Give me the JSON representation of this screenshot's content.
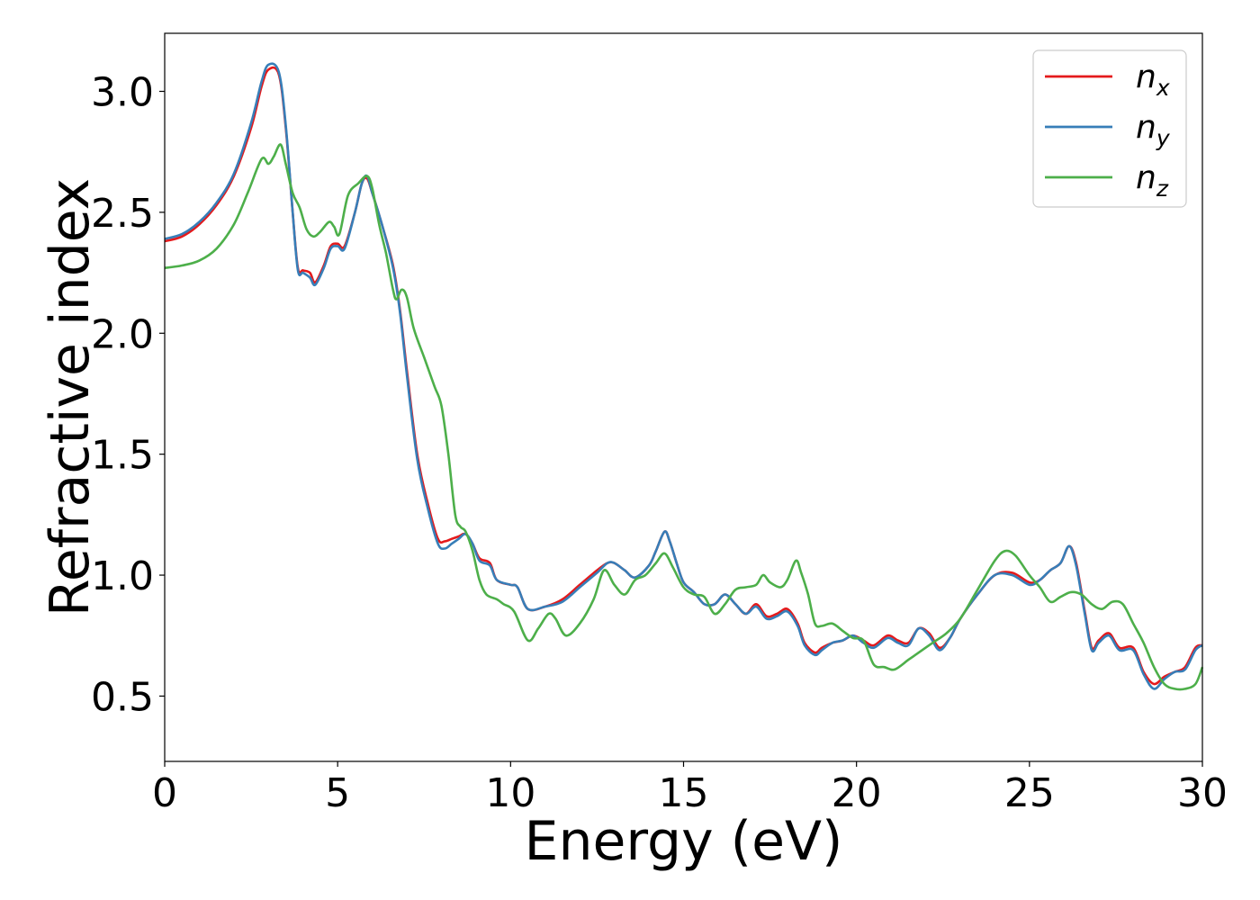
{
  "chart_data": {
    "type": "line",
    "title": "",
    "xlabel": "Energy (eV)",
    "ylabel": "Refractive index",
    "xlim": [
      0,
      30
    ],
    "ylim": [
      0.23,
      3.24
    ],
    "xticks": [
      0,
      5,
      10,
      15,
      20,
      25,
      30
    ],
    "xtick_labels": [
      "0",
      "5",
      "10",
      "15",
      "20",
      "25",
      "30"
    ],
    "yticks": [
      0.5,
      1.0,
      1.5,
      2.0,
      2.5,
      3.0
    ],
    "ytick_labels": [
      "0.5",
      "1.0",
      "1.5",
      "2.0",
      "2.5",
      "3.0"
    ],
    "grid": false,
    "legend_position": "top-right",
    "series": [
      {
        "name": "n_x",
        "label_base": "n",
        "label_sub": "x",
        "color": "#e41a1c",
        "x": [
          0,
          0.5,
          1,
          1.5,
          2,
          2.5,
          2.8,
          3.0,
          3.3,
          3.5,
          3.7,
          3.85,
          4.0,
          4.2,
          4.35,
          4.6,
          4.8,
          5.0,
          5.2,
          5.5,
          5.7,
          5.85,
          6.0,
          6.3,
          6.6,
          6.8,
          7.0,
          7.3,
          7.6,
          7.9,
          8.1,
          8.3,
          8.5,
          8.7,
          8.9,
          9.1,
          9.4,
          9.6,
          10.0,
          10.2,
          10.5,
          11.0,
          11.5,
          12.0,
          12.5,
          12.8,
          13.0,
          13.3,
          13.6,
          14.0,
          14.2,
          14.45,
          14.6,
          14.8,
          15.0,
          15.3,
          15.6,
          15.9,
          16.2,
          16.5,
          16.8,
          17.1,
          17.4,
          17.7,
          18.0,
          18.3,
          18.5,
          18.8,
          19.0,
          19.3,
          19.6,
          19.9,
          20.2,
          20.5,
          20.9,
          21.2,
          21.5,
          21.8,
          22.1,
          22.4,
          22.7,
          23.0,
          23.5,
          24.0,
          24.5,
          25.0,
          25.3,
          25.6,
          25.9,
          26.15,
          26.35,
          26.6,
          26.8,
          27.0,
          27.3,
          27.6,
          28.0,
          28.3,
          28.6,
          28.9,
          29.2,
          29.5,
          29.8,
          30.0
        ],
        "y": [
          2.38,
          2.4,
          2.45,
          2.53,
          2.65,
          2.85,
          3.02,
          3.09,
          3.07,
          2.85,
          2.5,
          2.27,
          2.26,
          2.25,
          2.21,
          2.28,
          2.36,
          2.37,
          2.36,
          2.5,
          2.62,
          2.64,
          2.58,
          2.44,
          2.28,
          2.1,
          1.85,
          1.5,
          1.3,
          1.15,
          1.14,
          1.15,
          1.16,
          1.17,
          1.13,
          1.07,
          1.05,
          0.98,
          0.96,
          0.95,
          0.86,
          0.87,
          0.9,
          0.96,
          1.02,
          1.05,
          1.05,
          1.02,
          0.99,
          1.04,
          1.1,
          1.18,
          1.14,
          1.05,
          0.97,
          0.93,
          0.88,
          0.88,
          0.92,
          0.88,
          0.84,
          0.88,
          0.83,
          0.84,
          0.86,
          0.8,
          0.72,
          0.68,
          0.7,
          0.72,
          0.73,
          0.75,
          0.73,
          0.71,
          0.75,
          0.73,
          0.72,
          0.78,
          0.76,
          0.7,
          0.74,
          0.82,
          0.92,
          1.0,
          1.01,
          0.97,
          0.98,
          1.02,
          1.05,
          1.12,
          1.05,
          0.85,
          0.7,
          0.73,
          0.76,
          0.7,
          0.7,
          0.6,
          0.55,
          0.58,
          0.6,
          0.62,
          0.7,
          0.71
        ]
      },
      {
        "name": "n_y",
        "label_base": "n",
        "label_sub": "y",
        "color": "#377eb8",
        "x": [
          0,
          0.5,
          1,
          1.5,
          2,
          2.5,
          2.8,
          3.0,
          3.3,
          3.5,
          3.7,
          3.85,
          4.0,
          4.2,
          4.35,
          4.6,
          4.8,
          5.0,
          5.2,
          5.5,
          5.7,
          5.85,
          6.0,
          6.3,
          6.6,
          6.8,
          7.0,
          7.3,
          7.6,
          7.9,
          8.1,
          8.3,
          8.5,
          8.7,
          8.9,
          9.1,
          9.4,
          9.6,
          10.0,
          10.2,
          10.5,
          11.0,
          11.5,
          12.0,
          12.5,
          12.8,
          13.0,
          13.3,
          13.6,
          14.0,
          14.2,
          14.45,
          14.6,
          14.8,
          15.0,
          15.3,
          15.6,
          15.9,
          16.2,
          16.5,
          16.8,
          17.1,
          17.4,
          17.7,
          18.0,
          18.3,
          18.5,
          18.8,
          19.0,
          19.3,
          19.6,
          19.9,
          20.2,
          20.5,
          20.9,
          21.2,
          21.5,
          21.8,
          22.1,
          22.4,
          22.7,
          23.0,
          23.5,
          24.0,
          24.5,
          25.0,
          25.3,
          25.6,
          25.9,
          26.15,
          26.35,
          26.6,
          26.8,
          27.0,
          27.3,
          27.6,
          28.0,
          28.3,
          28.6,
          28.9,
          29.2,
          29.5,
          29.8,
          30.0
        ],
        "y": [
          2.39,
          2.41,
          2.46,
          2.54,
          2.66,
          2.87,
          3.04,
          3.11,
          3.08,
          2.86,
          2.5,
          2.26,
          2.25,
          2.23,
          2.2,
          2.27,
          2.35,
          2.36,
          2.35,
          2.5,
          2.62,
          2.65,
          2.58,
          2.44,
          2.27,
          2.09,
          1.83,
          1.48,
          1.28,
          1.13,
          1.11,
          1.13,
          1.15,
          1.17,
          1.13,
          1.06,
          1.04,
          0.98,
          0.96,
          0.95,
          0.86,
          0.87,
          0.89,
          0.95,
          1.01,
          1.05,
          1.05,
          1.02,
          0.99,
          1.04,
          1.1,
          1.18,
          1.14,
          1.05,
          0.97,
          0.93,
          0.88,
          0.88,
          0.92,
          0.88,
          0.84,
          0.87,
          0.82,
          0.83,
          0.85,
          0.79,
          0.71,
          0.67,
          0.69,
          0.72,
          0.73,
          0.75,
          0.72,
          0.7,
          0.74,
          0.72,
          0.71,
          0.78,
          0.75,
          0.69,
          0.74,
          0.82,
          0.92,
          1.0,
          1.0,
          0.96,
          0.98,
          1.02,
          1.05,
          1.12,
          1.04,
          0.84,
          0.69,
          0.72,
          0.75,
          0.69,
          0.69,
          0.59,
          0.53,
          0.57,
          0.6,
          0.61,
          0.69,
          0.71
        ]
      },
      {
        "name": "n_z",
        "label_base": "n",
        "label_sub": "z",
        "color": "#4daf4a",
        "x": [
          0,
          0.5,
          1,
          1.5,
          2,
          2.4,
          2.8,
          3.0,
          3.15,
          3.35,
          3.5,
          3.7,
          3.9,
          4.1,
          4.3,
          4.5,
          4.75,
          4.9,
          5.05,
          5.3,
          5.6,
          5.85,
          6.0,
          6.2,
          6.4,
          6.6,
          6.7,
          6.85,
          7.0,
          7.2,
          7.5,
          7.8,
          8.0,
          8.2,
          8.4,
          8.55,
          8.7,
          8.9,
          9.1,
          9.3,
          9.6,
          9.8,
          10.1,
          10.5,
          10.8,
          11.1,
          11.3,
          11.6,
          12.0,
          12.4,
          12.7,
          13.0,
          13.3,
          13.6,
          13.9,
          14.2,
          14.45,
          14.7,
          15.0,
          15.3,
          15.6,
          15.9,
          16.2,
          16.5,
          16.8,
          17.1,
          17.3,
          17.5,
          17.8,
          18.0,
          18.25,
          18.4,
          18.6,
          18.8,
          19.0,
          19.3,
          19.6,
          19.9,
          20.2,
          20.5,
          20.8,
          21.1,
          21.5,
          21.8,
          22.2,
          22.6,
          23.0,
          23.5,
          24.0,
          24.3,
          24.6,
          25.0,
          25.3,
          25.6,
          25.9,
          26.2,
          26.5,
          26.8,
          27.1,
          27.4,
          27.7,
          28.0,
          28.3,
          28.6,
          28.9,
          29.2,
          29.5,
          29.8,
          30.0
        ],
        "y": [
          2.27,
          2.28,
          2.3,
          2.35,
          2.45,
          2.58,
          2.72,
          2.7,
          2.73,
          2.78,
          2.7,
          2.58,
          2.52,
          2.43,
          2.4,
          2.42,
          2.46,
          2.44,
          2.41,
          2.57,
          2.62,
          2.65,
          2.6,
          2.45,
          2.33,
          2.18,
          2.14,
          2.18,
          2.15,
          2.02,
          1.9,
          1.78,
          1.7,
          1.5,
          1.25,
          1.2,
          1.18,
          1.1,
          0.98,
          0.92,
          0.9,
          0.88,
          0.85,
          0.73,
          0.78,
          0.84,
          0.82,
          0.75,
          0.8,
          0.9,
          1.02,
          0.96,
          0.92,
          0.98,
          1.0,
          1.05,
          1.09,
          1.03,
          0.95,
          0.92,
          0.91,
          0.84,
          0.88,
          0.94,
          0.95,
          0.96,
          1.0,
          0.97,
          0.95,
          0.98,
          1.06,
          1.01,
          0.92,
          0.8,
          0.79,
          0.8,
          0.77,
          0.74,
          0.73,
          0.63,
          0.62,
          0.61,
          0.65,
          0.68,
          0.72,
          0.76,
          0.82,
          0.94,
          1.06,
          1.1,
          1.08,
          1.0,
          0.95,
          0.89,
          0.91,
          0.93,
          0.92,
          0.88,
          0.86,
          0.89,
          0.88,
          0.8,
          0.72,
          0.62,
          0.55,
          0.53,
          0.53,
          0.55,
          0.62
        ]
      }
    ]
  }
}
